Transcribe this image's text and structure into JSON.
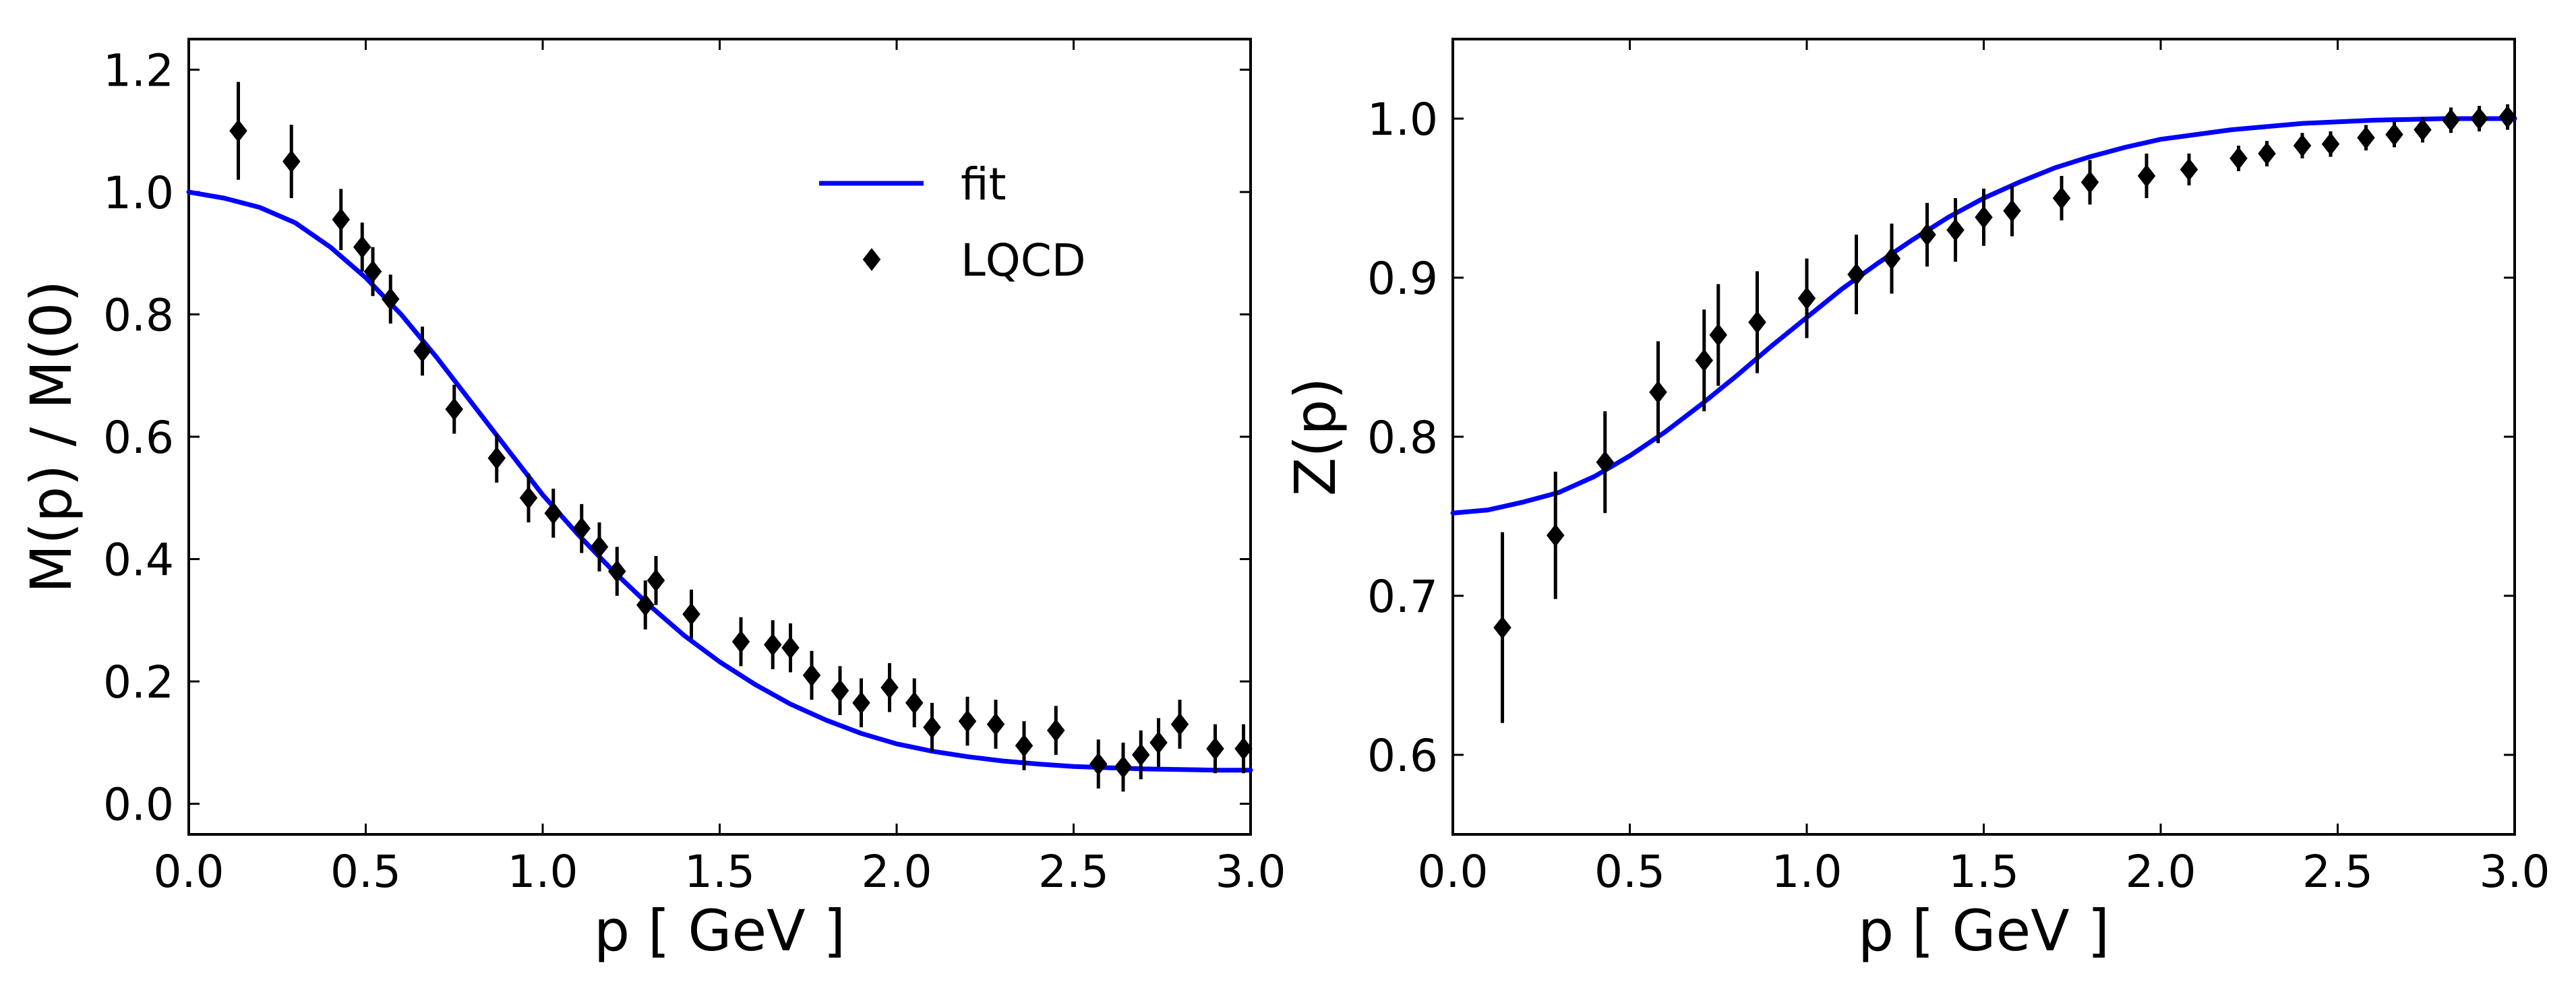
{
  "chart_data": [
    {
      "type": "scatter",
      "xlabel": "p  [ GeV ]",
      "ylabel": "M(p) / M(0)",
      "xlim": [
        0.0,
        3.0
      ],
      "ylim": [
        -0.05,
        1.25
      ],
      "xticks": [
        0.0,
        0.5,
        1.0,
        1.5,
        2.0,
        2.5,
        3.0
      ],
      "xtick_labels": [
        "0.0",
        "0.5",
        "1.0",
        "1.5",
        "2.0",
        "2.5",
        "3.0"
      ],
      "yticks": [
        0.0,
        0.2,
        0.4,
        0.6,
        0.8,
        1.0,
        1.2
      ],
      "ytick_labels": [
        "0.0",
        "0.2",
        "0.4",
        "0.6",
        "0.8",
        "1.0",
        "1.2"
      ],
      "legend": {
        "position": "upper-right",
        "entries": [
          "fit",
          "LQCD"
        ]
      },
      "series": [
        {
          "name": "fit",
          "kind": "line",
          "color": "#0000ff",
          "x": [
            0.0,
            0.1,
            0.2,
            0.3,
            0.4,
            0.5,
            0.6,
            0.7,
            0.8,
            0.9,
            1.0,
            1.1,
            1.2,
            1.3,
            1.4,
            1.5,
            1.6,
            1.7,
            1.8,
            1.9,
            2.0,
            2.1,
            2.2,
            2.3,
            2.4,
            2.5,
            2.6,
            2.7,
            2.8,
            2.9,
            3.0
          ],
          "y": [
            1.0,
            0.99,
            0.975,
            0.95,
            0.91,
            0.86,
            0.8,
            0.73,
            0.655,
            0.58,
            0.505,
            0.44,
            0.38,
            0.325,
            0.275,
            0.232,
            0.195,
            0.163,
            0.137,
            0.115,
            0.098,
            0.086,
            0.077,
            0.07,
            0.065,
            0.061,
            0.059,
            0.057,
            0.056,
            0.055,
            0.055
          ]
        },
        {
          "name": "LQCD",
          "kind": "errorbar",
          "marker": "diamond",
          "color": "#000000",
          "x": [
            0.14,
            0.29,
            0.43,
            0.49,
            0.52,
            0.57,
            0.66,
            0.75,
            0.87,
            0.96,
            1.03,
            1.11,
            1.16,
            1.21,
            1.29,
            1.32,
            1.42,
            1.56,
            1.65,
            1.7,
            1.76,
            1.84,
            1.9,
            1.98,
            2.05,
            2.1,
            2.2,
            2.28,
            2.36,
            2.45,
            2.57,
            2.64,
            2.69,
            2.74,
            2.8,
            2.9,
            2.98
          ],
          "y": [
            1.1,
            1.05,
            0.955,
            0.91,
            0.87,
            0.825,
            0.74,
            0.645,
            0.565,
            0.5,
            0.475,
            0.45,
            0.42,
            0.38,
            0.325,
            0.365,
            0.31,
            0.265,
            0.26,
            0.255,
            0.21,
            0.185,
            0.165,
            0.19,
            0.165,
            0.125,
            0.135,
            0.13,
            0.095,
            0.12,
            0.065,
            0.06,
            0.08,
            0.1,
            0.13,
            0.09,
            0.09
          ],
          "err": [
            0.08,
            0.06,
            0.05,
            0.04,
            0.04,
            0.04,
            0.04,
            0.04,
            0.04,
            0.04,
            0.04,
            0.04,
            0.04,
            0.04,
            0.04,
            0.04,
            0.04,
            0.04,
            0.04,
            0.04,
            0.04,
            0.04,
            0.04,
            0.04,
            0.04,
            0.04,
            0.04,
            0.04,
            0.04,
            0.04,
            0.04,
            0.04,
            0.04,
            0.04,
            0.04,
            0.04,
            0.04
          ]
        }
      ]
    },
    {
      "type": "scatter",
      "xlabel": "p [ GeV ]",
      "ylabel": "Z(p)",
      "xlim": [
        0.0,
        3.0
      ],
      "ylim": [
        0.55,
        1.05
      ],
      "xticks": [
        0.0,
        0.5,
        1.0,
        1.5,
        2.0,
        2.5,
        3.0
      ],
      "xtick_labels": [
        "0.0",
        "0.5",
        "1.0",
        "1.5",
        "2.0",
        "2.5",
        "3.0"
      ],
      "yticks": [
        0.6,
        0.7,
        0.8,
        0.9,
        1.0
      ],
      "ytick_labels": [
        "0.6",
        "0.7",
        "0.8",
        "0.9",
        "1.0"
      ],
      "series": [
        {
          "name": "fit",
          "kind": "line",
          "color": "#0000ff",
          "x": [
            0.0,
            0.1,
            0.2,
            0.3,
            0.4,
            0.5,
            0.6,
            0.7,
            0.8,
            0.9,
            1.0,
            1.1,
            1.2,
            1.3,
            1.4,
            1.5,
            1.6,
            1.7,
            1.8,
            1.9,
            2.0,
            2.2,
            2.4,
            2.6,
            2.8,
            3.0
          ],
          "y": [
            0.752,
            0.754,
            0.759,
            0.765,
            0.775,
            0.788,
            0.803,
            0.82,
            0.838,
            0.857,
            0.875,
            0.893,
            0.909,
            0.924,
            0.938,
            0.95,
            0.96,
            0.969,
            0.976,
            0.982,
            0.987,
            0.993,
            0.997,
            0.999,
            1.0,
            1.0
          ]
        },
        {
          "name": "LQCD",
          "kind": "errorbar",
          "marker": "diamond",
          "color": "#000000",
          "x": [
            0.14,
            0.29,
            0.43,
            0.58,
            0.71,
            0.75,
            0.86,
            1.0,
            1.14,
            1.24,
            1.34,
            1.42,
            1.5,
            1.58,
            1.72,
            1.8,
            1.96,
            2.08,
            2.22,
            2.3,
            2.4,
            2.48,
            2.58,
            2.66,
            2.74,
            2.82,
            2.9,
            2.98
          ],
          "y": [
            0.68,
            0.738,
            0.784,
            0.828,
            0.848,
            0.864,
            0.872,
            0.887,
            0.902,
            0.912,
            0.927,
            0.93,
            0.938,
            0.942,
            0.95,
            0.96,
            0.964,
            0.968,
            0.975,
            0.978,
            0.983,
            0.984,
            0.988,
            0.99,
            0.993,
            0.999,
            1.0,
            1.001
          ],
          "err": [
            0.06,
            0.04,
            0.032,
            0.032,
            0.032,
            0.032,
            0.032,
            0.025,
            0.025,
            0.022,
            0.02,
            0.02,
            0.018,
            0.016,
            0.014,
            0.014,
            0.014,
            0.01,
            0.008,
            0.008,
            0.008,
            0.008,
            0.008,
            0.008,
            0.008,
            0.008,
            0.008,
            0.008
          ]
        }
      ]
    }
  ]
}
